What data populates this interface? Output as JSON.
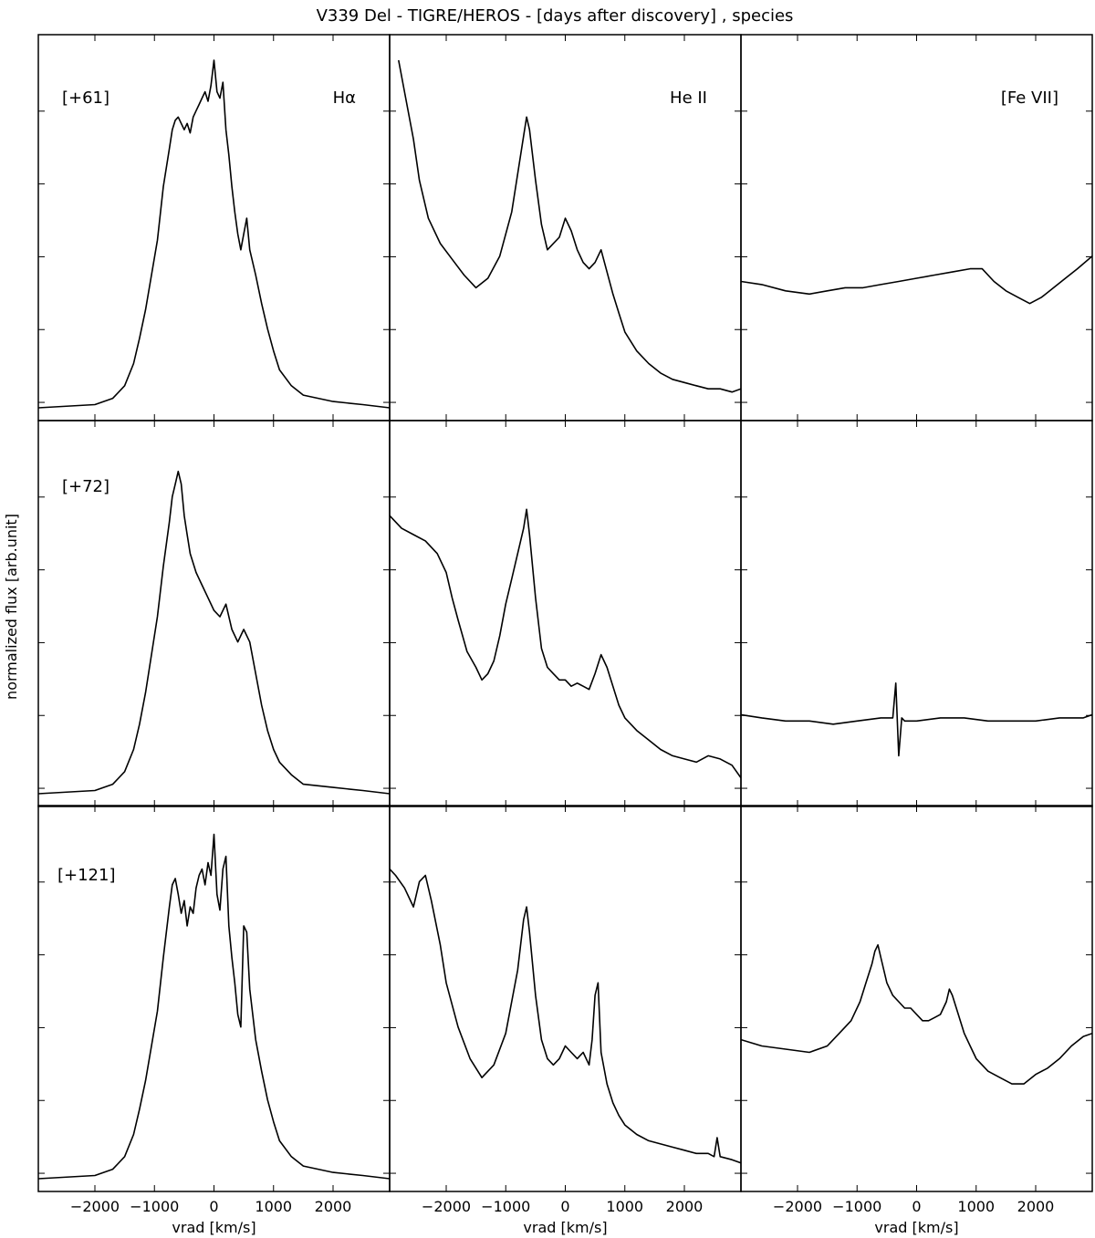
{
  "chart_data": {
    "type": "line",
    "title": "V339 Del - TIGRE/HEROS - [days after discovery] , species",
    "xlabel": "vrad [km/s]",
    "ylabel": "normalized flux [arb.unit]",
    "xlim": [
      -2950,
      2950
    ],
    "xticks": [
      -2000,
      -1000,
      0,
      1000,
      2000
    ],
    "xtick_labels": [
      "−2000",
      "−1000",
      "0",
      "1000",
      "2000"
    ],
    "y_tick_labels_shown": false,
    "grid": false,
    "columns": [
      "Hα",
      "He II",
      "[Fe VII]"
    ],
    "rows": [
      "[+61]",
      "[+72]",
      "[+121]"
    ],
    "panels": [
      {
        "row": 0,
        "col": 0,
        "epoch": "[+61]",
        "species": "Hα",
        "ylim": [
          0,
          1.1
        ],
        "x": [
          -2950,
          -2000,
          -1700,
          -1500,
          -1350,
          -1250,
          -1150,
          -1050,
          -950,
          -850,
          -750,
          -700,
          -650,
          -600,
          -550,
          -500,
          -450,
          -400,
          -350,
          -300,
          -250,
          -200,
          -150,
          -100,
          -50,
          0,
          50,
          100,
          150,
          200,
          250,
          300,
          350,
          400,
          450,
          500,
          550,
          600,
          700,
          800,
          900,
          1000,
          1100,
          1300,
          1500,
          2000,
          2500,
          2950
        ],
        "y": [
          0.0,
          0.01,
          0.03,
          0.07,
          0.14,
          0.22,
          0.31,
          0.42,
          0.53,
          0.7,
          0.82,
          0.88,
          0.91,
          0.92,
          0.9,
          0.88,
          0.9,
          0.87,
          0.92,
          0.94,
          0.96,
          0.98,
          1.0,
          0.97,
          1.02,
          1.1,
          1.0,
          0.98,
          1.03,
          0.88,
          0.8,
          0.7,
          0.62,
          0.55,
          0.5,
          0.55,
          0.6,
          0.5,
          0.42,
          0.33,
          0.25,
          0.18,
          0.12,
          0.07,
          0.04,
          0.02,
          0.01,
          0.0
        ]
      },
      {
        "row": 0,
        "col": 1,
        "epoch": "[+61]",
        "species": "He II",
        "ylim": [
          0,
          1.1
        ],
        "x": [
          -2800,
          -2700,
          -2550,
          -2450,
          -2300,
          -2100,
          -1900,
          -1700,
          -1500,
          -1300,
          -1100,
          -900,
          -800,
          -700,
          -650,
          -600,
          -500,
          -400,
          -300,
          -200,
          -100,
          0,
          100,
          200,
          300,
          400,
          500,
          600,
          700,
          800,
          900,
          1000,
          1200,
          1400,
          1600,
          1800,
          2000,
          2200,
          2400,
          2600,
          2800,
          2950
        ],
        "y": [
          1.1,
          1.0,
          0.85,
          0.72,
          0.6,
          0.52,
          0.47,
          0.42,
          0.38,
          0.41,
          0.48,
          0.62,
          0.74,
          0.86,
          0.92,
          0.88,
          0.72,
          0.58,
          0.5,
          0.52,
          0.54,
          0.6,
          0.56,
          0.5,
          0.46,
          0.44,
          0.46,
          0.5,
          0.43,
          0.36,
          0.3,
          0.24,
          0.18,
          0.14,
          0.11,
          0.09,
          0.08,
          0.07,
          0.06,
          0.06,
          0.05,
          0.06
        ]
      },
      {
        "row": 0,
        "col": 2,
        "epoch": "[+61]",
        "species": "[Fe VII]",
        "ylim": [
          0,
          1.1
        ],
        "x": [
          -2950,
          -2600,
          -2200,
          -1800,
          -1500,
          -1200,
          -900,
          -600,
          -300,
          0,
          300,
          600,
          900,
          1100,
          1300,
          1500,
          1700,
          1900,
          2100,
          2300,
          2500,
          2700,
          2950
        ],
        "y": [
          0.4,
          0.39,
          0.37,
          0.36,
          0.37,
          0.38,
          0.38,
          0.39,
          0.4,
          0.41,
          0.42,
          0.43,
          0.44,
          0.44,
          0.4,
          0.37,
          0.35,
          0.33,
          0.35,
          0.38,
          0.41,
          0.44,
          0.48
        ]
      },
      {
        "row": 1,
        "col": 0,
        "epoch": "[+72]",
        "species": "Hα",
        "ylim": [
          0,
          1.1
        ],
        "x": [
          -2950,
          -2000,
          -1700,
          -1500,
          -1350,
          -1250,
          -1150,
          -1050,
          -950,
          -850,
          -750,
          -700,
          -650,
          -600,
          -550,
          -500,
          -450,
          -400,
          -300,
          -200,
          -100,
          0,
          100,
          200,
          300,
          400,
          500,
          600,
          700,
          800,
          900,
          1000,
          1100,
          1300,
          1500,
          2000,
          2500,
          2950
        ],
        "y": [
          0.0,
          0.01,
          0.03,
          0.07,
          0.14,
          0.22,
          0.32,
          0.44,
          0.56,
          0.72,
          0.86,
          0.94,
          0.98,
          1.02,
          0.98,
          0.88,
          0.82,
          0.76,
          0.7,
          0.66,
          0.62,
          0.58,
          0.56,
          0.6,
          0.52,
          0.48,
          0.52,
          0.48,
          0.38,
          0.28,
          0.2,
          0.14,
          0.1,
          0.06,
          0.03,
          0.02,
          0.01,
          0.0
        ]
      },
      {
        "row": 1,
        "col": 1,
        "epoch": "[+72]",
        "species": "He II",
        "ylim": [
          0,
          1.1
        ],
        "x": [
          -2950,
          -2750,
          -2550,
          -2350,
          -2150,
          -2000,
          -1900,
          -1800,
          -1650,
          -1500,
          -1400,
          -1300,
          -1200,
          -1100,
          -1000,
          -900,
          -800,
          -700,
          -650,
          -600,
          -500,
          -400,
          -300,
          -200,
          -100,
          0,
          100,
          200,
          300,
          400,
          500,
          600,
          700,
          800,
          900,
          1000,
          1200,
          1400,
          1600,
          1800,
          2000,
          2200,
          2400,
          2600,
          2800,
          2950
        ],
        "y": [
          0.88,
          0.84,
          0.82,
          0.8,
          0.76,
          0.7,
          0.62,
          0.55,
          0.45,
          0.4,
          0.36,
          0.38,
          0.42,
          0.5,
          0.6,
          0.68,
          0.76,
          0.84,
          0.9,
          0.82,
          0.62,
          0.46,
          0.4,
          0.38,
          0.36,
          0.36,
          0.34,
          0.35,
          0.34,
          0.33,
          0.38,
          0.44,
          0.4,
          0.34,
          0.28,
          0.24,
          0.2,
          0.17,
          0.14,
          0.12,
          0.11,
          0.1,
          0.12,
          0.11,
          0.09,
          0.05
        ]
      },
      {
        "row": 1,
        "col": 2,
        "epoch": "[+72]",
        "species": "[Fe VII]",
        "ylim": [
          0,
          1.1
        ],
        "x": [
          -2950,
          -2600,
          -2200,
          -1800,
          -1400,
          -1000,
          -600,
          -400,
          -350,
          -300,
          -250,
          -200,
          0,
          400,
          800,
          1200,
          1600,
          2000,
          2400,
          2800,
          2950
        ],
        "y": [
          0.25,
          0.24,
          0.23,
          0.23,
          0.22,
          0.23,
          0.24,
          0.24,
          0.35,
          0.12,
          0.24,
          0.23,
          0.23,
          0.24,
          0.24,
          0.23,
          0.23,
          0.23,
          0.24,
          0.24,
          0.25
        ]
      },
      {
        "row": 2,
        "col": 0,
        "epoch": "[+121]",
        "species": "Hα",
        "ylim": [
          0,
          1.1
        ],
        "x": [
          -2950,
          -2000,
          -1700,
          -1500,
          -1350,
          -1250,
          -1150,
          -1050,
          -950,
          -850,
          -750,
          -700,
          -650,
          -600,
          -550,
          -500,
          -450,
          -400,
          -350,
          -300,
          -250,
          -200,
          -150,
          -100,
          -50,
          0,
          50,
          100,
          150,
          200,
          250,
          300,
          350,
          400,
          450,
          500,
          550,
          600,
          700,
          800,
          900,
          1000,
          1100,
          1300,
          1500,
          2000,
          2500,
          2950
        ],
        "y": [
          0.0,
          0.01,
          0.03,
          0.07,
          0.14,
          0.22,
          0.31,
          0.42,
          0.53,
          0.7,
          0.86,
          0.93,
          0.95,
          0.9,
          0.84,
          0.88,
          0.8,
          0.86,
          0.84,
          0.92,
          0.96,
          0.98,
          0.93,
          1.0,
          0.96,
          1.09,
          0.9,
          0.85,
          0.98,
          1.02,
          0.8,
          0.7,
          0.62,
          0.52,
          0.48,
          0.8,
          0.78,
          0.6,
          0.44,
          0.34,
          0.25,
          0.18,
          0.12,
          0.07,
          0.04,
          0.02,
          0.01,
          0.0
        ]
      },
      {
        "row": 2,
        "col": 1,
        "epoch": "[+121]",
        "species": "He II",
        "ylim": [
          0,
          1.1
        ],
        "x": [
          -2950,
          -2850,
          -2700,
          -2550,
          -2450,
          -2350,
          -2250,
          -2100,
          -2000,
          -1800,
          -1600,
          -1400,
          -1200,
          -1000,
          -800,
          -700,
          -650,
          -600,
          -500,
          -400,
          -300,
          -200,
          -100,
          0,
          100,
          200,
          300,
          400,
          450,
          500,
          550,
          600,
          700,
          800,
          900,
          1000,
          1200,
          1400,
          1600,
          1800,
          2000,
          2200,
          2400,
          2500,
          2550,
          2600,
          2800,
          2950
        ],
        "y": [
          0.98,
          0.96,
          0.92,
          0.86,
          0.94,
          0.96,
          0.88,
          0.74,
          0.62,
          0.48,
          0.38,
          0.32,
          0.36,
          0.46,
          0.66,
          0.82,
          0.86,
          0.78,
          0.58,
          0.44,
          0.38,
          0.36,
          0.38,
          0.42,
          0.4,
          0.38,
          0.4,
          0.36,
          0.44,
          0.58,
          0.62,
          0.4,
          0.3,
          0.24,
          0.2,
          0.17,
          0.14,
          0.12,
          0.11,
          0.1,
          0.09,
          0.08,
          0.08,
          0.07,
          0.13,
          0.07,
          0.06,
          0.05
        ]
      },
      {
        "row": 2,
        "col": 2,
        "epoch": "[+121]",
        "species": "[Fe VII]",
        "ylim": [
          0,
          1.1
        ],
        "x": [
          -2950,
          -2600,
          -2200,
          -1800,
          -1500,
          -1300,
          -1100,
          -950,
          -850,
          -750,
          -700,
          -650,
          -600,
          -500,
          -400,
          -300,
          -200,
          -100,
          0,
          100,
          200,
          300,
          400,
          500,
          550,
          600,
          700,
          800,
          900,
          1000,
          1200,
          1400,
          1600,
          1800,
          2000,
          2200,
          2400,
          2600,
          2800,
          2950
        ],
        "y": [
          0.44,
          0.42,
          0.41,
          0.4,
          0.42,
          0.46,
          0.5,
          0.56,
          0.62,
          0.68,
          0.72,
          0.74,
          0.7,
          0.62,
          0.58,
          0.56,
          0.54,
          0.54,
          0.52,
          0.5,
          0.5,
          0.51,
          0.52,
          0.56,
          0.6,
          0.58,
          0.52,
          0.46,
          0.42,
          0.38,
          0.34,
          0.32,
          0.3,
          0.3,
          0.33,
          0.35,
          0.38,
          0.42,
          0.45,
          0.46
        ]
      }
    ]
  }
}
